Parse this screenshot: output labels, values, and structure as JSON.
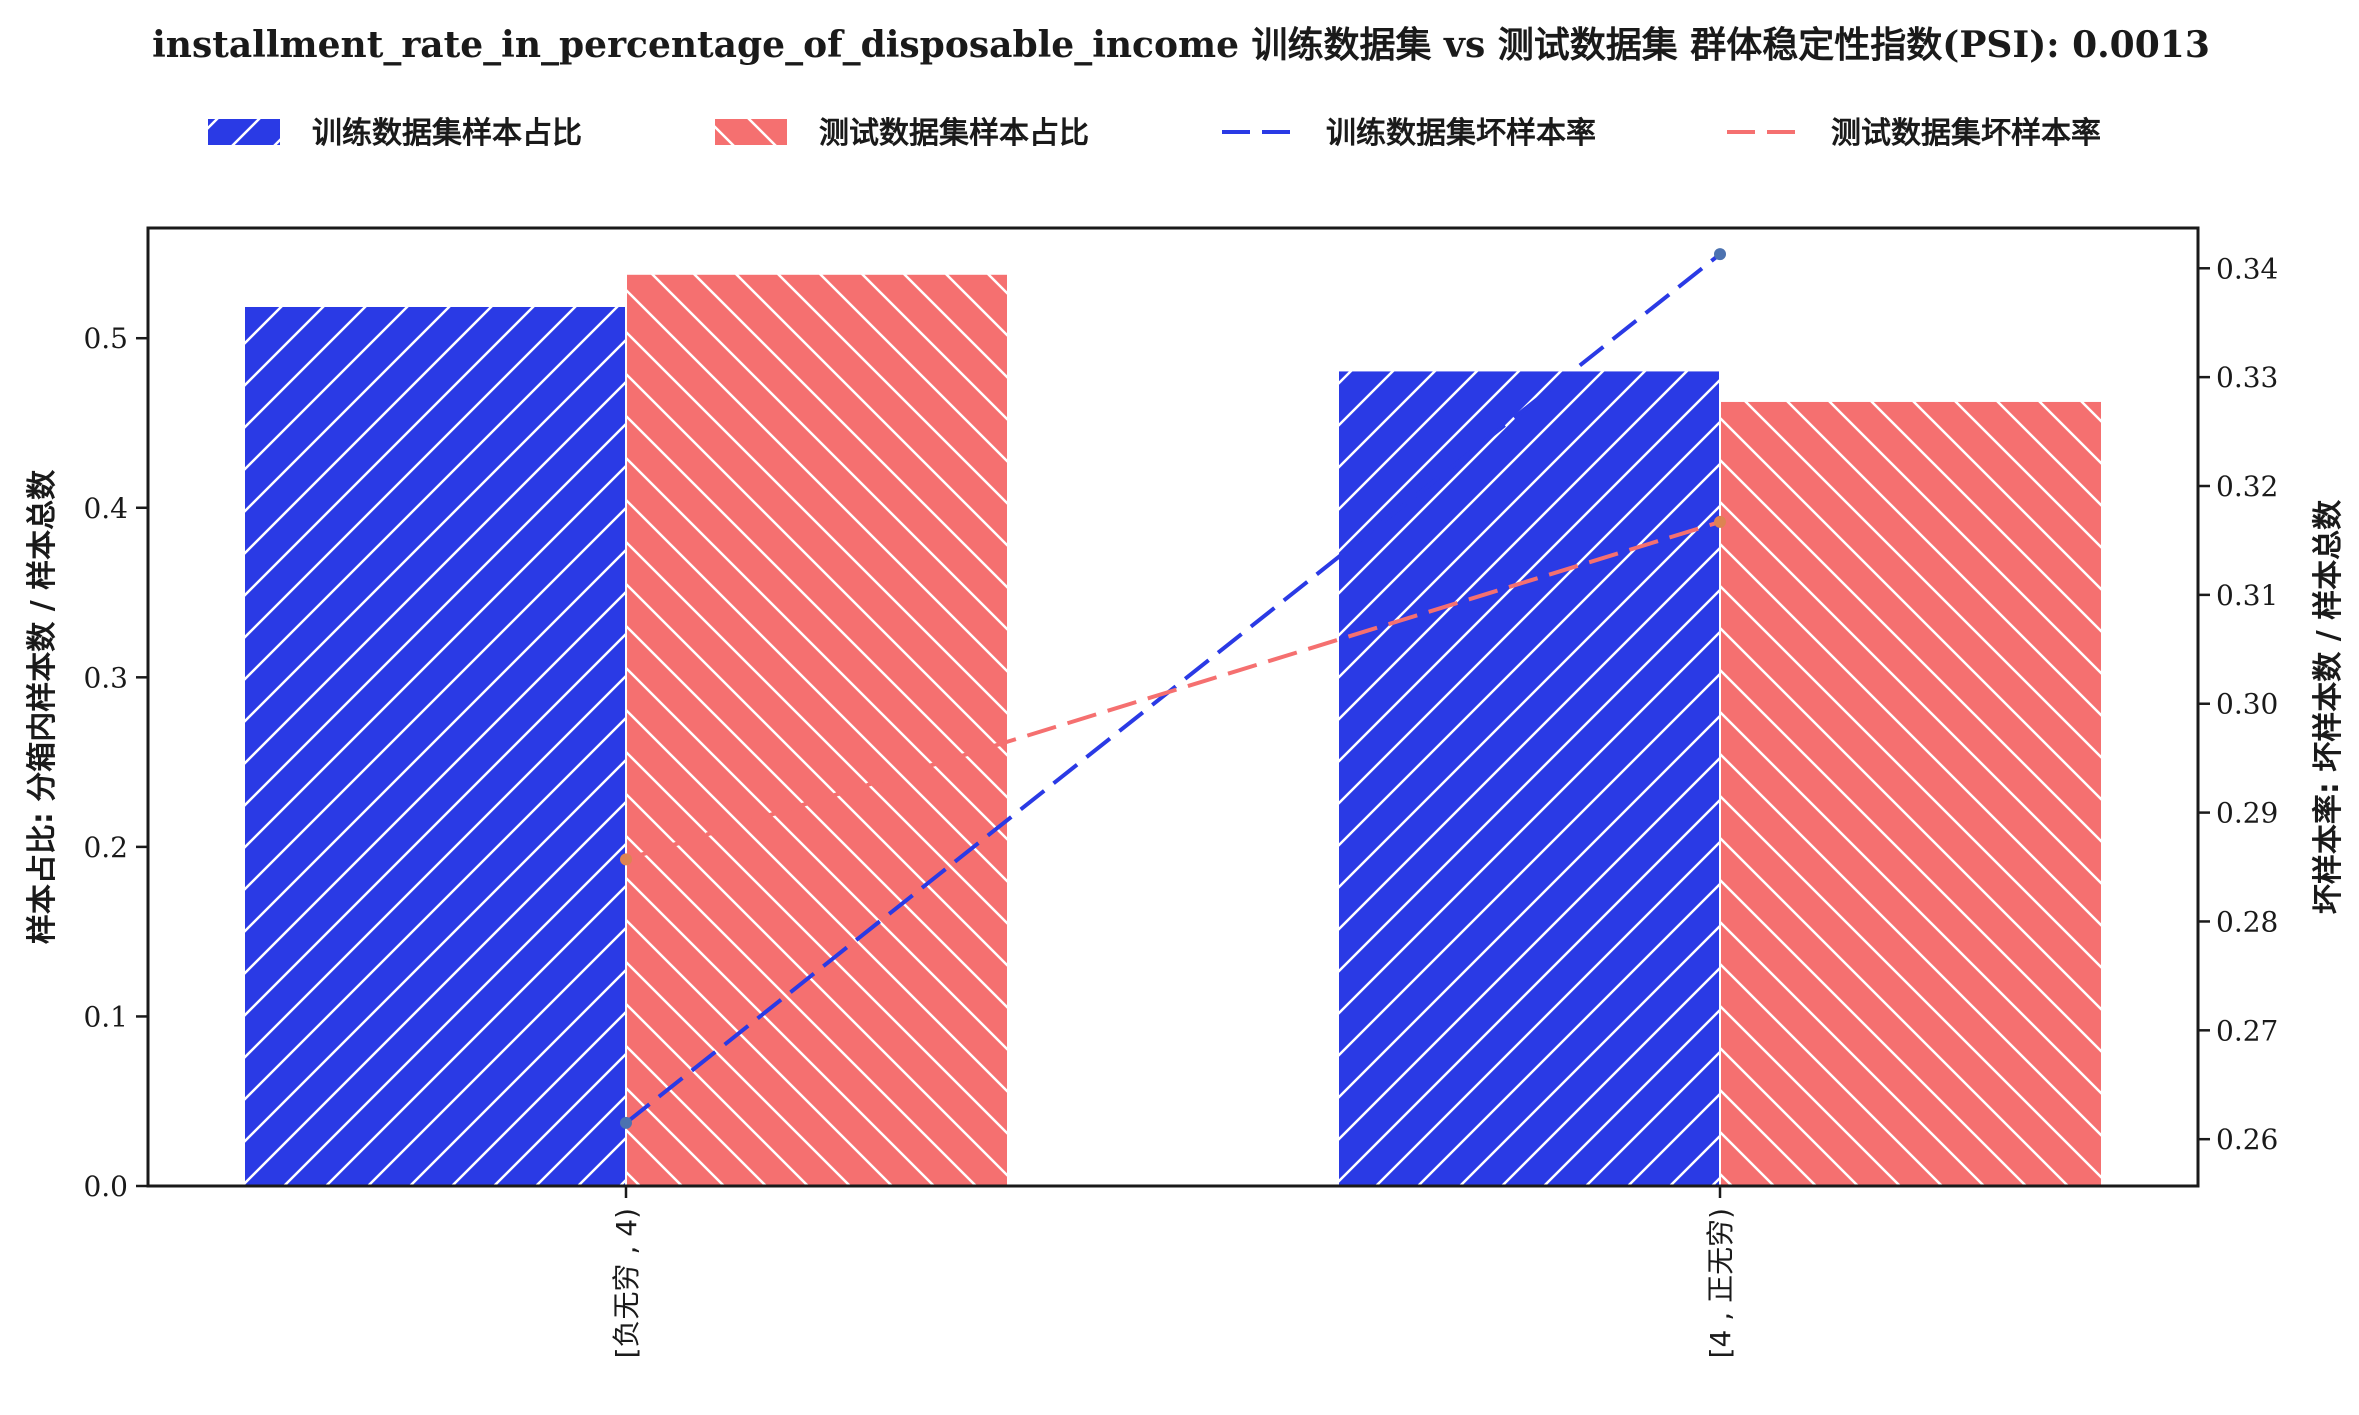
{
  "chart_data": {
    "type": "bar",
    "title": "installment_rate_in_percentage_of_disposable_income 训练数据集 vs 测试数据集 群体稳定性指数(PSI): 0.0013",
    "categories": [
      "[负无穷 , 4)",
      "[4 , 正无穷)"
    ],
    "bar_series": [
      {
        "name": "训练数据集样本占比",
        "values": [
          0.519,
          0.481
        ],
        "color": "#2a3ae5",
        "hatch": "/"
      },
      {
        "name": "测试数据集样本占比",
        "values": [
          0.538,
          0.463
        ],
        "color": "#f57070",
        "hatch": "\\"
      }
    ],
    "line_series": [
      {
        "name": "训练数据集坏样本率",
        "values": [
          0.2615,
          0.3413
        ],
        "color": "#2a3ae5",
        "marker_color": "#4c72b0"
      },
      {
        "name": "测试数据集坏样本率",
        "values": [
          0.2857,
          0.3167
        ],
        "color": "#f57070",
        "marker_color": "#dd8452"
      }
    ],
    "ylabel_left": "样本占比: 分箱内样本数 / 样本总数",
    "ylabel_right": "坏样本率: 坏样本数 / 样本总数",
    "ylim_left": [
      0,
      0.565
    ],
    "ylim_right": [
      0.2557,
      0.3437
    ],
    "yticks_left": [
      "0.0",
      "0.1",
      "0.2",
      "0.3",
      "0.4",
      "0.5"
    ],
    "yticks_right": [
      "0.26",
      "0.27",
      "0.28",
      "0.29",
      "0.30",
      "0.31",
      "0.32",
      "0.33",
      "0.34"
    ],
    "legend_position": "top",
    "grid": false
  }
}
